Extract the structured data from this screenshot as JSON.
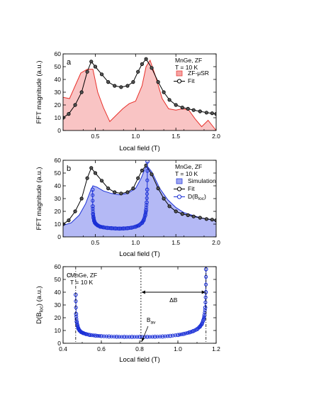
{
  "chart_data": [
    {
      "type": "area",
      "panel_label": "a",
      "sample_line1": "MnGe, ZF",
      "sample_line2": "T = 10 K",
      "xlabel": "Local field (T)",
      "ylabel": "FFT magnitude (a.u.)",
      "xlim": [
        0.1,
        2.0
      ],
      "ylim": [
        0,
        60
      ],
      "xticks": [
        "0.5",
        "1.0",
        "1.5",
        "2.0"
      ],
      "yticks": [
        "0",
        "10",
        "20",
        "30",
        "40",
        "50",
        "60"
      ],
      "legend": [
        {
          "label": "ZF-μSR",
          "marker": "filled-square",
          "color": "#f5a3a3"
        },
        {
          "label": "Fit",
          "marker": "open-circle-line",
          "color": "#000000"
        }
      ],
      "series": [
        {
          "name": "ZF-μSR",
          "style": "filled-area",
          "fill": "#f9c4c4",
          "stroke": "#e8302a",
          "x": [
            0.1,
            0.18,
            0.25,
            0.32,
            0.4,
            0.47,
            0.53,
            0.6,
            0.68,
            0.76,
            0.84,
            0.92,
            1.0,
            1.08,
            1.13,
            1.18,
            1.25,
            1.33,
            1.41,
            1.5,
            1.58,
            1.66,
            1.74,
            1.82,
            1.9,
            2.0
          ],
          "y": [
            26,
            25,
            35,
            45,
            48,
            48,
            30,
            18,
            7,
            12,
            17,
            21,
            23,
            35,
            50,
            55,
            42,
            25,
            17,
            16,
            17,
            16,
            9,
            3,
            8,
            0
          ]
        },
        {
          "name": "Fit",
          "style": "line-open-circles",
          "color": "#000000",
          "x": [
            0.1,
            0.17,
            0.25,
            0.33,
            0.4,
            0.45,
            0.5,
            0.58,
            0.66,
            0.74,
            0.82,
            0.9,
            0.97,
            1.03,
            1.08,
            1.13,
            1.2,
            1.28,
            1.35,
            1.42,
            1.5,
            1.58,
            1.65,
            1.72,
            1.8,
            1.88,
            1.95,
            2.0
          ],
          "y": [
            10,
            13,
            20,
            30,
            46,
            54,
            50,
            44,
            38,
            35,
            34,
            35,
            38,
            46,
            52,
            56,
            49,
            38,
            30,
            24,
            20,
            18,
            17,
            16,
            15,
            14,
            13.5,
            13
          ]
        }
      ]
    },
    {
      "type": "area",
      "panel_label": "b",
      "sample_line1": "MnGe, ZF",
      "sample_line2": "T = 10 K",
      "xlabel": "Local field (T)",
      "ylabel": "FFT magnitude (a.u.)",
      "xlim": [
        0.1,
        2.0
      ],
      "ylim": [
        0,
        60
      ],
      "xticks": [
        "0.5",
        "1.0",
        "1.5",
        "2.0"
      ],
      "yticks": [
        "0",
        "10",
        "20",
        "30",
        "40",
        "50",
        "60"
      ],
      "legend": [
        {
          "label": "Simulation",
          "marker": "filled-square",
          "color": "#9da5f2"
        },
        {
          "label": "Fit",
          "marker": "open-circle-line",
          "color": "#000000"
        },
        {
          "label": "D(B",
          "sub": "loc",
          "suffix": ")",
          "marker": "open-circle-line",
          "color": "#1a2fd6"
        }
      ],
      "series": [
        {
          "name": "Simulation",
          "style": "filled-area",
          "fill": "#b4b9f5",
          "stroke": "#1a2fd6",
          "x": [
            0.1,
            0.2,
            0.3,
            0.38,
            0.44,
            0.47,
            0.52,
            0.6,
            0.7,
            0.8,
            0.9,
            1.0,
            1.07,
            1.12,
            1.15,
            1.2,
            1.3,
            1.4,
            1.5,
            1.6,
            1.7,
            1.8,
            1.9,
            2.0
          ],
          "y": [
            9,
            11,
            17,
            26,
            36,
            40,
            39,
            36,
            34,
            33,
            34,
            38,
            46,
            54,
            55,
            51,
            38,
            29,
            23,
            19,
            17,
            15,
            14,
            13
          ]
        },
        {
          "name": "Fit",
          "style": "line-open-circles",
          "color": "#000000",
          "x": [
            0.1,
            0.17,
            0.25,
            0.33,
            0.4,
            0.45,
            0.5,
            0.58,
            0.66,
            0.74,
            0.82,
            0.9,
            0.97,
            1.03,
            1.08,
            1.13,
            1.2,
            1.28,
            1.35,
            1.42,
            1.5,
            1.58,
            1.65,
            1.72,
            1.8,
            1.88,
            1.95,
            2.0
          ],
          "y": [
            10,
            13,
            20,
            30,
            46,
            54,
            50,
            44,
            38,
            35,
            34,
            35,
            38,
            46,
            52,
            56,
            49,
            38,
            30,
            24,
            20,
            18,
            17,
            16,
            15,
            14,
            13.5,
            13
          ]
        },
        {
          "name": "D(Bloc)",
          "style": "line-open-circles-dense",
          "color": "#1a2fd6",
          "x": [
            0.466,
            0.468,
            0.472,
            0.478,
            0.486,
            0.496,
            0.51,
            0.53,
            0.56,
            0.6,
            0.65,
            0.7,
            0.75,
            0.8,
            0.85,
            0.9,
            0.95,
            1.0,
            1.04,
            1.08,
            1.1,
            1.12,
            1.13,
            1.138,
            1.144,
            1.147
          ],
          "y": [
            37,
            24,
            18,
            15,
            12.5,
            11,
            10,
            9,
            8,
            7.5,
            7,
            6.8,
            6.6,
            6.5,
            6.6,
            6.8,
            7.2,
            8,
            9,
            11,
            13,
            17,
            21,
            27,
            37,
            59
          ]
        }
      ]
    },
    {
      "type": "line",
      "panel_label": "c",
      "sample_line1": "MnGe, ZF",
      "sample_line2": "T = 10 K",
      "xlabel": "Local field (T)",
      "ylabel": "D(B",
      "ylabel_sub": "loc",
      "ylabel_suffix": ") (a.u.)",
      "xlim": [
        0.4,
        1.2
      ],
      "ylim": [
        0,
        60
      ],
      "xticks": [
        "0.4",
        "0.6",
        "0.8",
        "1.0",
        "1.2"
      ],
      "yticks": [
        "0",
        "10",
        "20",
        "30",
        "40",
        "50",
        "60"
      ],
      "annotations": {
        "delta_b": "ΔB",
        "b_av": "B",
        "b_av_sub": "av",
        "b_min": 0.466,
        "b_av_value": 0.807,
        "b_max": 1.147,
        "delta_b_y": 40
      },
      "series": [
        {
          "name": "D(Bloc)",
          "style": "line-open-circles-dense",
          "color": "#1a2fd6",
          "x": [
            0.466,
            0.468,
            0.471,
            0.475,
            0.48,
            0.486,
            0.494,
            0.505,
            0.52,
            0.54,
            0.57,
            0.6,
            0.64,
            0.68,
            0.72,
            0.76,
            0.8,
            0.84,
            0.88,
            0.92,
            0.96,
            1.0,
            1.03,
            1.06,
            1.08,
            1.1,
            1.115,
            1.125,
            1.133,
            1.139,
            1.143,
            1.146,
            1.147
          ],
          "y": [
            38,
            23,
            17,
            14,
            11.5,
            10,
            8.8,
            8,
            7.2,
            6.5,
            6,
            5.6,
            5.3,
            5.1,
            5.0,
            5.0,
            5.0,
            5.0,
            5.1,
            5.3,
            5.8,
            6.5,
            7.3,
            8.5,
            9.5,
            11,
            13,
            15,
            18,
            22,
            28,
            40,
            58
          ]
        }
      ]
    }
  ]
}
